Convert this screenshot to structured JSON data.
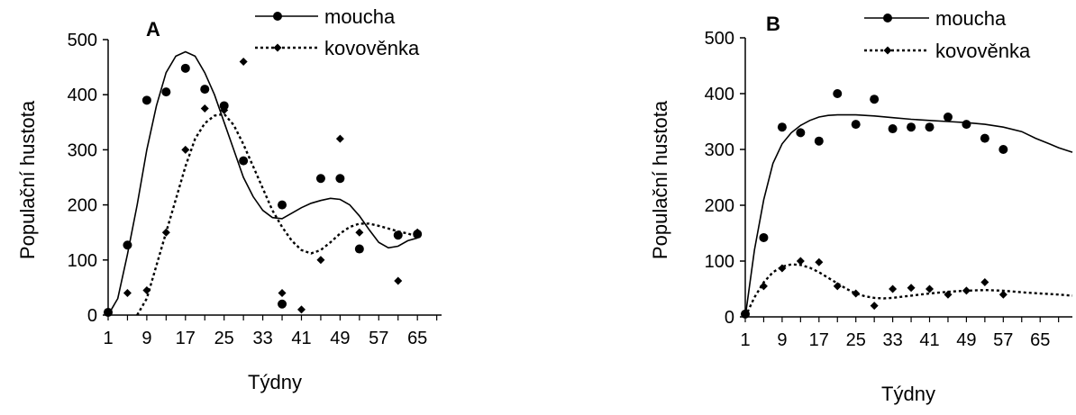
{
  "chart_data": [
    {
      "type": "scatter",
      "panel_label": "A",
      "xlabel": "Týdny",
      "ylabel": "Populační hustota",
      "ylim": [
        0,
        500
      ],
      "yticks": [
        "0",
        "100",
        "200",
        "300",
        "400",
        "500"
      ],
      "xticks": [
        "1",
        "9",
        "17",
        "25",
        "33",
        "41",
        "49",
        "57",
        "65"
      ],
      "xtick_values": [
        1,
        9,
        17,
        25,
        33,
        41,
        49,
        57,
        65
      ],
      "xlim": [
        1,
        70
      ],
      "legend_position": "top",
      "series": [
        {
          "name": "moucha",
          "marker": "circle",
          "line": "solid",
          "points": [
            [
              1,
              5
            ],
            [
              5,
              127
            ],
            [
              9,
              390
            ],
            [
              13,
              405
            ],
            [
              17,
              448
            ],
            [
              21,
              410
            ],
            [
              25,
              380
            ],
            [
              29,
              280
            ],
            [
              37,
              20
            ],
            [
              37,
              200
            ],
            [
              45,
              248
            ],
            [
              49,
              248
            ],
            [
              53,
              120
            ],
            [
              61,
              145
            ],
            [
              65,
              147
            ]
          ],
          "curve": [
            [
              1,
              0
            ],
            [
              3,
              30
            ],
            [
              5,
              110
            ],
            [
              7,
              200
            ],
            [
              9,
              300
            ],
            [
              11,
              380
            ],
            [
              13,
              440
            ],
            [
              15,
              470
            ],
            [
              17,
              478
            ],
            [
              19,
              470
            ],
            [
              21,
              440
            ],
            [
              23,
              400
            ],
            [
              25,
              350
            ],
            [
              27,
              300
            ],
            [
              29,
              250
            ],
            [
              31,
              215
            ],
            [
              33,
              190
            ],
            [
              35,
              177
            ],
            [
              37,
              175
            ],
            [
              39,
              185
            ],
            [
              41,
              195
            ],
            [
              43,
              203
            ],
            [
              45,
              208
            ],
            [
              47,
              212
            ],
            [
              49,
              210
            ],
            [
              51,
              200
            ],
            [
              53,
              180
            ],
            [
              55,
              155
            ],
            [
              57,
              132
            ],
            [
              59,
              122
            ],
            [
              61,
              125
            ],
            [
              63,
              135
            ],
            [
              65,
              140
            ]
          ]
        },
        {
          "name": "kovověnka",
          "marker": "diamond",
          "line": "dotted",
          "points": [
            [
              5,
              40
            ],
            [
              9,
              45
            ],
            [
              13,
              150
            ],
            [
              17,
              300
            ],
            [
              21,
              375
            ],
            [
              25,
              372
            ],
            [
              29,
              460
            ],
            [
              37,
              40
            ],
            [
              41,
              10
            ],
            [
              45,
              100
            ],
            [
              49,
              320
            ],
            [
              53,
              150
            ],
            [
              61,
              62
            ],
            [
              65,
              150
            ]
          ],
          "curve": [
            [
              7,
              0
            ],
            [
              9,
              30
            ],
            [
              11,
              90
            ],
            [
              13,
              150
            ],
            [
              15,
              210
            ],
            [
              17,
              270
            ],
            [
              19,
              320
            ],
            [
              21,
              348
            ],
            [
              23,
              362
            ],
            [
              25,
              365
            ],
            [
              27,
              345
            ],
            [
              29,
              310
            ],
            [
              31,
              270
            ],
            [
              33,
              230
            ],
            [
              35,
              190
            ],
            [
              37,
              160
            ],
            [
              39,
              135
            ],
            [
              41,
              118
            ],
            [
              43,
              112
            ],
            [
              45,
              118
            ],
            [
              47,
              132
            ],
            [
              49,
              148
            ],
            [
              51,
              160
            ],
            [
              53,
              166
            ],
            [
              55,
              166
            ],
            [
              57,
              162
            ],
            [
              59,
              157
            ],
            [
              61,
              152
            ],
            [
              63,
              148
            ],
            [
              65,
              142
            ]
          ]
        }
      ]
    },
    {
      "type": "scatter",
      "panel_label": "B",
      "xlabel": "Týdny",
      "ylabel": "Populační hustota",
      "ylim": [
        0,
        500
      ],
      "yticks": [
        "0",
        "100",
        "200",
        "300",
        "400",
        "500"
      ],
      "xticks": [
        "1",
        "9",
        "17",
        "25",
        "33",
        "41",
        "49",
        "57",
        "65"
      ],
      "xtick_values": [
        1,
        9,
        17,
        25,
        33,
        41,
        49,
        57,
        65
      ],
      "xlim": [
        1,
        72
      ],
      "legend_position": "top",
      "series": [
        {
          "name": "moucha",
          "marker": "circle",
          "line": "solid",
          "points": [
            [
              1,
              5
            ],
            [
              5,
              142
            ],
            [
              9,
              340
            ],
            [
              13,
              330
            ],
            [
              17,
              315
            ],
            [
              21,
              400
            ],
            [
              25,
              345
            ],
            [
              29,
              390
            ],
            [
              33,
              337
            ],
            [
              37,
              340
            ],
            [
              41,
              340
            ],
            [
              45,
              358
            ],
            [
              49,
              345
            ],
            [
              53,
              320
            ],
            [
              57,
              300
            ]
          ],
          "curve": [
            [
              1,
              0
            ],
            [
              3,
              120
            ],
            [
              5,
              210
            ],
            [
              7,
              275
            ],
            [
              9,
              310
            ],
            [
              11,
              330
            ],
            [
              13,
              343
            ],
            [
              15,
              352
            ],
            [
              17,
              358
            ],
            [
              19,
              361
            ],
            [
              21,
              362
            ],
            [
              25,
              362
            ],
            [
              29,
              360
            ],
            [
              33,
              357
            ],
            [
              37,
              354
            ],
            [
              41,
              352
            ],
            [
              45,
              350
            ],
            [
              49,
              348
            ],
            [
              53,
              345
            ],
            [
              57,
              340
            ],
            [
              61,
              332
            ],
            [
              64,
              320
            ],
            [
              67,
              310
            ],
            [
              69,
              303
            ],
            [
              72,
              295
            ]
          ]
        },
        {
          "name": "kovověnka",
          "marker": "diamond",
          "line": "dotted",
          "points": [
            [
              1,
              5
            ],
            [
              5,
              55
            ],
            [
              9,
              87
            ],
            [
              13,
              100
            ],
            [
              17,
              98
            ],
            [
              21,
              55
            ],
            [
              25,
              42
            ],
            [
              29,
              20
            ],
            [
              33,
              50
            ],
            [
              37,
              52
            ],
            [
              41,
              50
            ],
            [
              45,
              40
            ],
            [
              49,
              47
            ],
            [
              53,
              62
            ],
            [
              57,
              40
            ]
          ],
          "curve": [
            [
              1,
              0
            ],
            [
              3,
              35
            ],
            [
              5,
              62
            ],
            [
              7,
              80
            ],
            [
              9,
              90
            ],
            [
              11,
              94
            ],
            [
              13,
              93
            ],
            [
              15,
              88
            ],
            [
              17,
              80
            ],
            [
              19,
              70
            ],
            [
              21,
              60
            ],
            [
              23,
              50
            ],
            [
              25,
              42
            ],
            [
              27,
              37
            ],
            [
              29,
              34
            ],
            [
              31,
              33
            ],
            [
              33,
              34
            ],
            [
              37,
              38
            ],
            [
              41,
              42
            ],
            [
              45,
              45
            ],
            [
              49,
              47
            ],
            [
              53,
              48
            ],
            [
              57,
              47
            ],
            [
              61,
              44
            ],
            [
              65,
              42
            ],
            [
              69,
              40
            ],
            [
              72,
              38
            ]
          ]
        }
      ]
    }
  ]
}
